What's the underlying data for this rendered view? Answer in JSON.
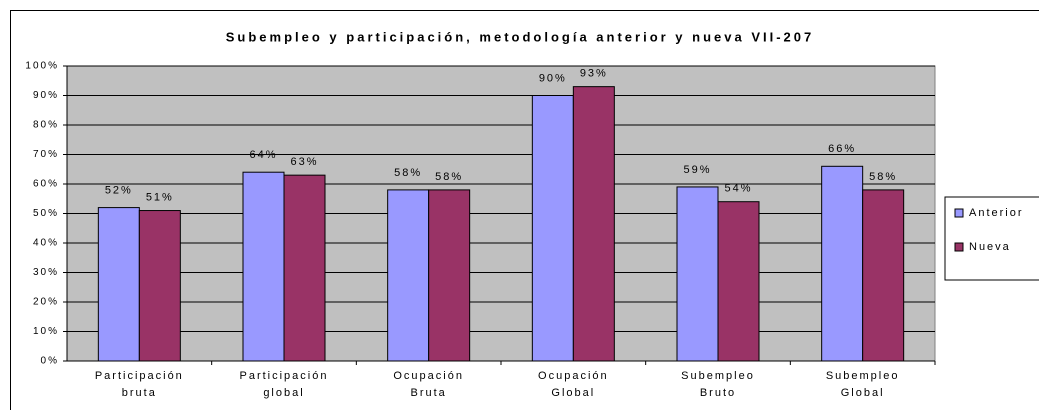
{
  "chart_data": {
    "type": "bar",
    "title": "Subempleo y participación, metodología anterior y nueva VII-207",
    "categories": [
      "Participación bruta",
      "Participación global",
      "Ocupación Bruta",
      "Ocupación Global",
      "Subempleo Bruto",
      "Subempleo Global"
    ],
    "series": [
      {
        "name": "Anterior",
        "color": "#9999ff",
        "values": [
          52,
          64,
          58,
          90,
          59,
          66
        ],
        "value_labels": [
          "52%",
          "64%",
          "58%",
          "90%",
          "59%",
          "66%"
        ]
      },
      {
        "name": "Nueva",
        "color": "#993366",
        "values": [
          51,
          63,
          58,
          93,
          54,
          58
        ],
        "value_labels": [
          "51%",
          "63%",
          "58%",
          "93%",
          "54%",
          "58%"
        ]
      }
    ],
    "ylim": [
      0,
      100
    ],
    "yticks": [
      {
        "value": 0,
        "label": "0%"
      },
      {
        "value": 10,
        "label": "10%"
      },
      {
        "value": 20,
        "label": "20%"
      },
      {
        "value": 30,
        "label": "30%"
      },
      {
        "value": 40,
        "label": "40%"
      },
      {
        "value": 50,
        "label": "50%"
      },
      {
        "value": 60,
        "label": "60%"
      },
      {
        "value": 70,
        "label": "70%"
      },
      {
        "value": 80,
        "label": "80%"
      },
      {
        "value": 90,
        "label": "90%"
      },
      {
        "value": 100,
        "label": "100%"
      }
    ],
    "grid": true,
    "plot_background": "#c0c0c0",
    "legend": "right"
  }
}
